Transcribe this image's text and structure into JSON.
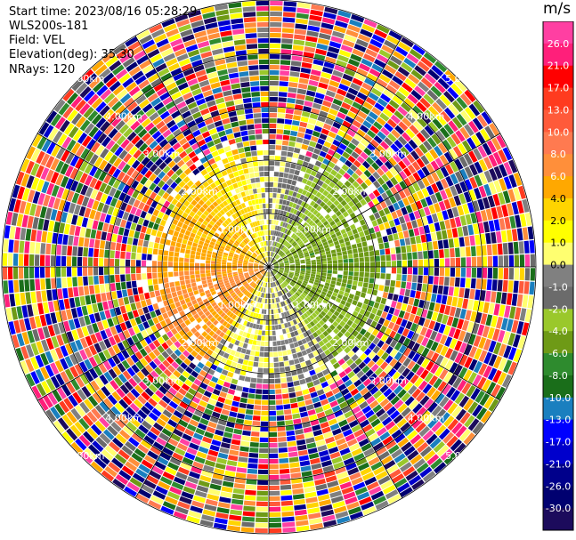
{
  "header": {
    "start_time": "Start time: 2023/08/16 05:28:29",
    "instrument": "WLS200s-181",
    "field": "Field: VEL",
    "elevation": "Elevation(deg): 35.30",
    "nrays": "NRays: 120"
  },
  "chart_data": {
    "type": "heatmap",
    "subtype": "polar-ppi",
    "field": "VEL",
    "unit": "m/s",
    "nrays": 120,
    "elevation_deg": 35.3,
    "range_rings_km": [
      1.0,
      2.0,
      3.0,
      4.0,
      5.0
    ],
    "range_ring_label": "km",
    "color_scale": {
      "ticks": [
        "26.0",
        "21.0",
        "17.0",
        "13.0",
        "10.0",
        "8.0",
        "6.0",
        "4.0",
        "2.0",
        "1.0",
        "0.0",
        "-1.0",
        "-2.0",
        "-4.0",
        "-6.0",
        "-8.0",
        "-10.0",
        "-13.0",
        "-17.0",
        "-21.0",
        "-26.0",
        "-30.0"
      ],
      "colors": [
        "#ff3fa2",
        "#ff1f7a",
        "#ff0000",
        "#ff3b1f",
        "#ff5a3a",
        "#ff7a50",
        "#ff8f3a",
        "#ffa800",
        "#ffd400",
        "#ffff00",
        "#ffff70",
        "#808080",
        "#6b6b6b",
        "#9ac82b",
        "#6e9a16",
        "#2e8b2e",
        "#1a6e1a",
        "#1a7fbf",
        "#0000ff",
        "#0000cc",
        "#00008b",
        "#000070",
        "#1c0b5c"
      ]
    },
    "field_pattern": {
      "clean_radius_km": 2.0,
      "outer_radius_km": 5.0,
      "sectors": [
        {
          "direction": "west",
          "velocity_ms": 3.0
        },
        {
          "direction": "southwest",
          "velocity_ms": 5.0
        },
        {
          "direction": "east",
          "velocity_ms": -5.0
        },
        {
          "direction": "north",
          "velocity_ms": -1.5
        },
        {
          "direction": "south",
          "velocity_ms": 0.0
        }
      ]
    }
  }
}
